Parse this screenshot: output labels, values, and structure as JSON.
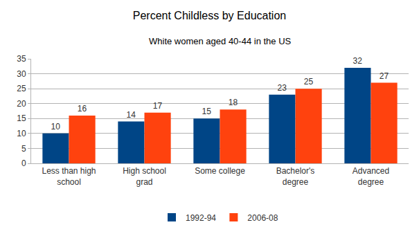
{
  "chart_data": {
    "type": "bar",
    "title": "Percent Childless by Education",
    "subtitle": "White women aged 40-44 in the US",
    "categories": [
      "Less than high school",
      "High school grad",
      "Some college",
      "Bachelor's degree",
      "Advanced degree"
    ],
    "series": [
      {
        "name": "1992-94",
        "color": "#004586",
        "values": [
          10,
          14,
          15,
          23,
          32
        ]
      },
      {
        "name": "2006-08",
        "color": "#ff420e",
        "values": [
          16,
          17,
          18,
          25,
          27
        ]
      }
    ],
    "ylim": [
      0,
      35
    ],
    "yticks": [
      0,
      5,
      10,
      15,
      20,
      25,
      30,
      35
    ],
    "grid": true,
    "legend": "bottom",
    "data_labels": true
  }
}
